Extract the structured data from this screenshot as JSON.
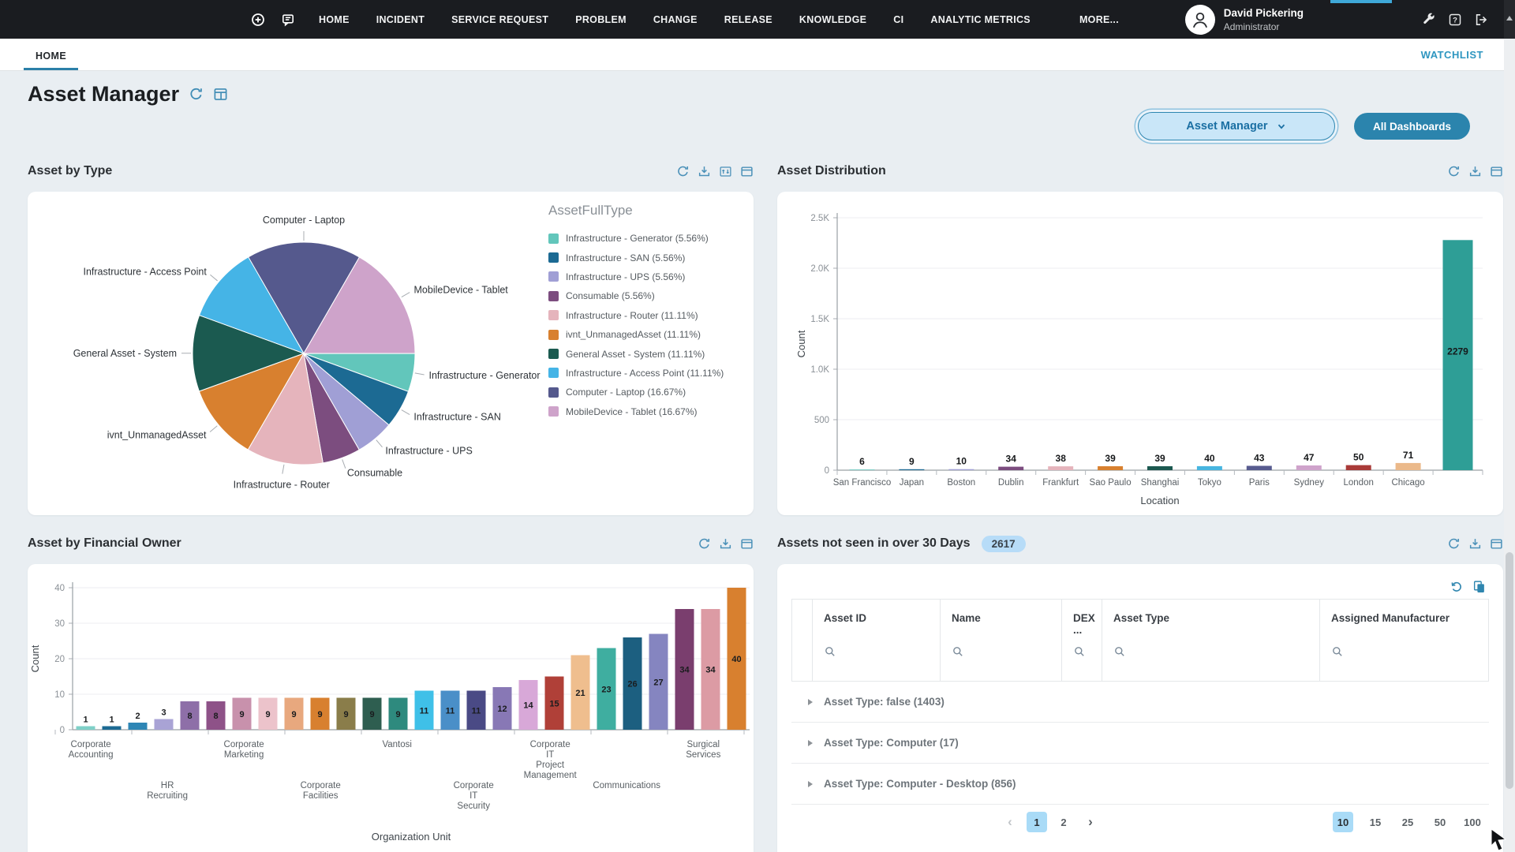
{
  "navbar": {
    "items": [
      "HOME",
      "INCIDENT",
      "SERVICE REQUEST",
      "PROBLEM",
      "CHANGE",
      "RELEASE",
      "KNOWLEDGE",
      "CI",
      "ANALYTIC METRICS",
      "MORE..."
    ],
    "user": {
      "name": "David Pickering",
      "role": "Administrator"
    }
  },
  "tabbar": {
    "active_tab": "HOME",
    "watchlist_label": "WATCHLIST"
  },
  "header": {
    "title": "Asset Manager"
  },
  "controls": {
    "dashboard_selector_value": "Asset Manager",
    "all_dashboards_label": "All Dashboards"
  },
  "panels": {
    "asset_by_type": {
      "title": "Asset by Type"
    },
    "asset_distribution": {
      "title": "Asset Distribution"
    },
    "asset_by_financial_owner": {
      "title": "Asset by Financial Owner"
    },
    "assets_not_seen": {
      "title": "Assets not seen in over 30 Days",
      "badge": "2617"
    }
  },
  "chart_data": [
    {
      "type": "pie",
      "title": "Asset by Type",
      "legend_title": "AssetFullType",
      "legend_position": "right",
      "slices": [
        {
          "label": "Infrastructure - Generator",
          "pct": 5.56,
          "color": "#62C6BB",
          "legend_text": "Infrastructure - Generator (5.56%)"
        },
        {
          "label": "Infrastructure - SAN",
          "pct": 5.56,
          "color": "#1C6A93",
          "legend_text": "Infrastructure - SAN (5.56%)"
        },
        {
          "label": "Infrastructure - UPS",
          "pct": 5.56,
          "color": "#A09FD5",
          "legend_text": "Infrastructure - UPS (5.56%)"
        },
        {
          "label": "Consumable",
          "pct": 5.56,
          "color": "#7C4D7F",
          "legend_text": "Consumable (5.56%)"
        },
        {
          "label": "Infrastructure - Router",
          "pct": 11.11,
          "color": "#E5B4BC",
          "legend_text": "Infrastructure - Router (11.11%)"
        },
        {
          "label": "ivnt_UnmanagedAsset",
          "pct": 11.11,
          "color": "#D8802F",
          "legend_text": "ivnt_UnmanagedAsset (11.11%)"
        },
        {
          "label": "General Asset - System",
          "pct": 11.11,
          "color": "#1B5A50",
          "legend_text": "General Asset - System (11.11%)"
        },
        {
          "label": "Infrastructure - Access Point",
          "pct": 11.11,
          "color": "#45B4E6",
          "legend_text": "Infrastructure - Access Point (11.11%)"
        },
        {
          "label": "Computer - Laptop",
          "pct": 16.67,
          "color": "#55598D",
          "legend_text": "Computer - Laptop (16.67%)"
        },
        {
          "label": "MobileDevice - Tablet",
          "pct": 16.67,
          "color": "#CEA3CA",
          "legend_text": "MobileDevice - Tablet (16.67%)"
        }
      ]
    },
    {
      "type": "bar",
      "title": "Asset Distribution",
      "categories": [
        "San Francisco",
        "Japan",
        "Boston",
        "Dublin",
        "Frankfurt",
        "Sao Paulo",
        "Shanghai",
        "Tokyo",
        "Paris",
        "Sydney",
        "London",
        "Chicago",
        ""
      ],
      "values": [
        6,
        9,
        10,
        34,
        38,
        39,
        39,
        40,
        43,
        47,
        50,
        71,
        2279
      ],
      "colors": [
        "#62C6BB",
        "#1C6A93",
        "#A09FD5",
        "#7C4D7F",
        "#E5B4BC",
        "#D8802F",
        "#1C5950",
        "#47B5E0",
        "#575B8F",
        "#CFA3CB",
        "#A93A38",
        "#EBB98A",
        "#2E9E96"
      ],
      "xlabel": "Location",
      "ylabel": "Count",
      "ylim": [
        0,
        2500
      ],
      "yticks": [
        "0",
        "500",
        "1.0K",
        "1.5K",
        "2.0K",
        "2.5K"
      ],
      "grid": true,
      "legend_position": "none"
    },
    {
      "type": "bar",
      "title": "Asset by Financial Owner",
      "values": [
        1,
        1,
        2,
        3,
        8,
        8,
        9,
        9,
        9,
        9,
        9,
        9,
        9,
        11,
        11,
        11,
        12,
        14,
        15,
        21,
        23,
        26,
        27,
        34,
        34,
        40
      ],
      "colors": [
        "#7FD0C8",
        "#1C6A93",
        "#2E86B5",
        "#A9A3D5",
        "#8E6FA8",
        "#8E5288",
        "#C891AC",
        "#ECC3CB",
        "#E8A87E",
        "#D8802F",
        "#8A7D4A",
        "#2E5E50",
        "#2E8A7E",
        "#3FC0E8",
        "#4A8FC8",
        "#4A4A85",
        "#8878B5",
        "#D8A8D8",
        "#B04038",
        "#EFBE8E",
        "#3FAEA0",
        "#1C5F80",
        "#8585C0",
        "#7A3E6E",
        "#DC9BA4",
        "#D8802F"
      ],
      "x_tick_labels": [
        {
          "lines": [
            "Corporate",
            "Accounting"
          ],
          "row": 0
        },
        {
          "lines": [
            "HR",
            "Recruiting"
          ],
          "row": 1
        },
        {
          "lines": [
            "Corporate",
            "Marketing"
          ],
          "row": 0
        },
        {
          "lines": [
            "Corporate",
            "Facilities"
          ],
          "row": 1
        },
        {
          "lines": [
            "Vantosi"
          ],
          "row": 0
        },
        {
          "lines": [
            "Corporate",
            "IT",
            "Security"
          ],
          "row": 1
        },
        {
          "lines": [
            "Corporate",
            "IT",
            "Project",
            "Management"
          ],
          "row": 0
        },
        {
          "lines": [
            "Communications"
          ],
          "row": 1
        },
        {
          "lines": [
            "Surgical",
            "Services"
          ],
          "row": 0
        }
      ],
      "xlabel": "Organization Unit",
      "ylabel": "Count",
      "ylim": [
        0,
        40
      ],
      "yticks": [
        "0",
        "10",
        "20",
        "30",
        "40"
      ],
      "grid": true,
      "legend_position": "none"
    }
  ],
  "table": {
    "columns": [
      "",
      "Asset ID",
      "Name",
      "DEX ...",
      "Asset Type",
      "Assigned Manufacturer"
    ],
    "groups": [
      "Asset Type: false (1403)",
      "Asset Type: Computer (17)",
      "Asset Type: Computer - Desktop (856)"
    ],
    "pagination": {
      "prev": "‹",
      "next": "›",
      "pages": [
        "1",
        "2"
      ],
      "active_page": "1",
      "page_sizes": [
        "10",
        "15",
        "25",
        "50",
        "100"
      ],
      "active_size": "10"
    }
  },
  "colors": {
    "accent": "#2B84AD",
    "accent_light": "#A9DBF7",
    "nav_bg": "#1A1C20",
    "page_bg": "#E9EEF2",
    "big_bar": "#2E9E96"
  }
}
